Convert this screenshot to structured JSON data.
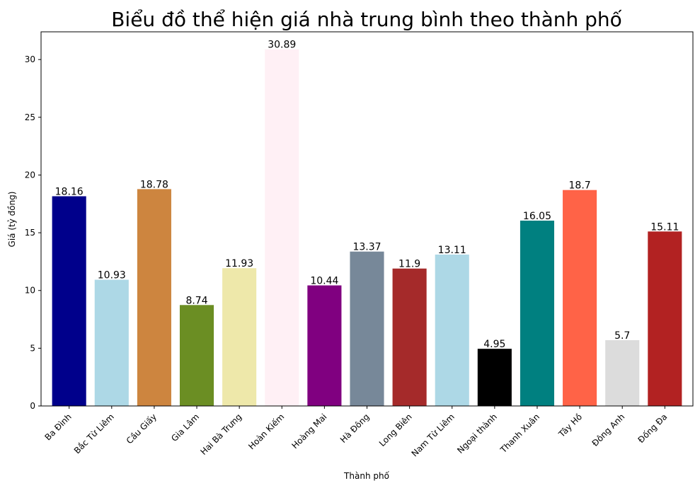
{
  "chart_data": {
    "type": "bar",
    "title": "Biểu đồ thể hiện giá nhà trung bình theo thành phố",
    "xlabel": "Thành phố",
    "ylabel": "Giá (tỷ đồng)",
    "ylim": [
      0,
      32.4
    ],
    "yticks": [
      "0",
      "5",
      "10",
      "15",
      "20",
      "25",
      "30"
    ],
    "grid": false,
    "categories": [
      "Ba Đình",
      "Bắc Từ Liêm",
      "Cầu Giấy",
      "Gia Lâm",
      "Hai Bà Trưng",
      "Hoàn Kiếm",
      "Hoàng Mai",
      "Hà Đông",
      "Long Biên",
      "Nam Từ Liêm",
      "Ngoại thành",
      "Thanh Xuân",
      "Tây Hồ",
      "Đông Anh",
      "Đống Đa"
    ],
    "values": [
      18.16,
      10.93,
      18.78,
      8.74,
      11.93,
      30.89,
      10.44,
      13.37,
      11.9,
      13.11,
      4.95,
      16.05,
      18.7,
      5.7,
      15.11
    ],
    "value_labels": [
      "18.16",
      "10.93",
      "18.78",
      "8.74",
      "11.93",
      "30.89",
      "10.44",
      "13.37",
      "11.9",
      "13.11",
      "4.95",
      "16.05",
      "18.7",
      "5.7",
      "15.11"
    ],
    "colors": [
      "#00008b",
      "#add8e6",
      "#cd853f",
      "#6b8e23",
      "#eee8aa",
      "#fff0f5",
      "#800080",
      "#778899",
      "#a52a2a",
      "#add8e6",
      "#000000",
      "#008080",
      "#ff6347",
      "#dcdcdc",
      "#b22222"
    ]
  }
}
